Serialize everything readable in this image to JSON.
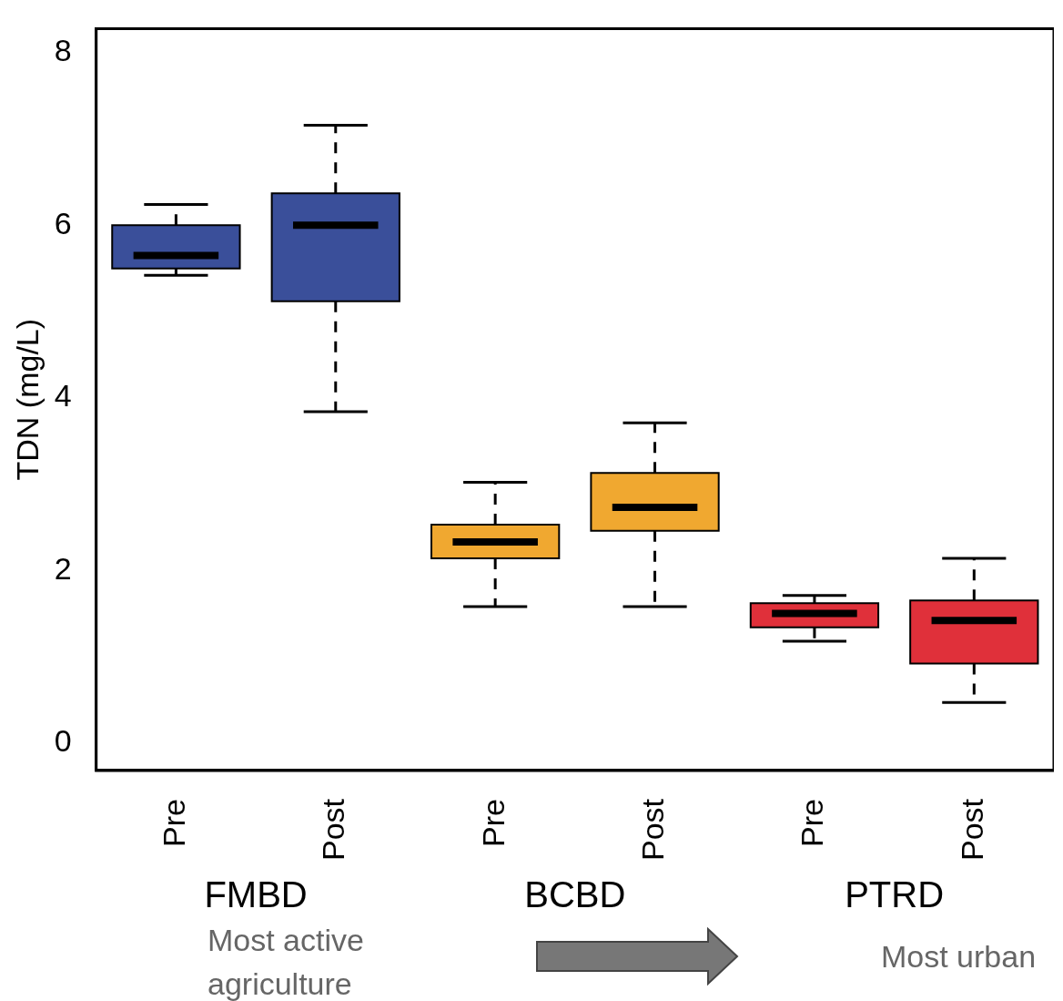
{
  "chart_data": {
    "type": "box",
    "ylabel": "TDN (mg/L)",
    "categories": [
      "Pre",
      "Post",
      "Pre",
      "Post",
      "Pre",
      "Post"
    ],
    "colors": [
      "#3a4f9a",
      "#3a4f9a",
      "#f0a830",
      "#f0a830",
      "#e0303a",
      "#e0303a"
    ],
    "boxes": [
      {
        "low": 5.42,
        "q1": 5.5,
        "median": 5.65,
        "q3": 6.0,
        "high": 6.24
      },
      {
        "low": 3.84,
        "q1": 5.12,
        "median": 6.0,
        "q3": 6.37,
        "high": 7.16
      },
      {
        "low": 1.58,
        "q1": 2.14,
        "median": 2.33,
        "q3": 2.53,
        "high": 3.02
      },
      {
        "low": 1.58,
        "q1": 2.46,
        "median": 2.73,
        "q3": 3.13,
        "high": 3.71
      },
      {
        "low": 1.18,
        "q1": 1.34,
        "median": 1.5,
        "q3": 1.62,
        "high": 1.71
      },
      {
        "low": 0.47,
        "q1": 0.92,
        "median": 1.42,
        "q3": 1.65,
        "high": 2.14
      }
    ],
    "ylim": [
      -0.32,
      8.28
    ],
    "yticks": [
      0,
      2,
      4,
      6,
      8
    ],
    "grid": false,
    "legend": false,
    "annotations": [
      "FMBD",
      "BCBD",
      "PTRD",
      "Most active agriculture",
      "Most urban"
    ]
  }
}
